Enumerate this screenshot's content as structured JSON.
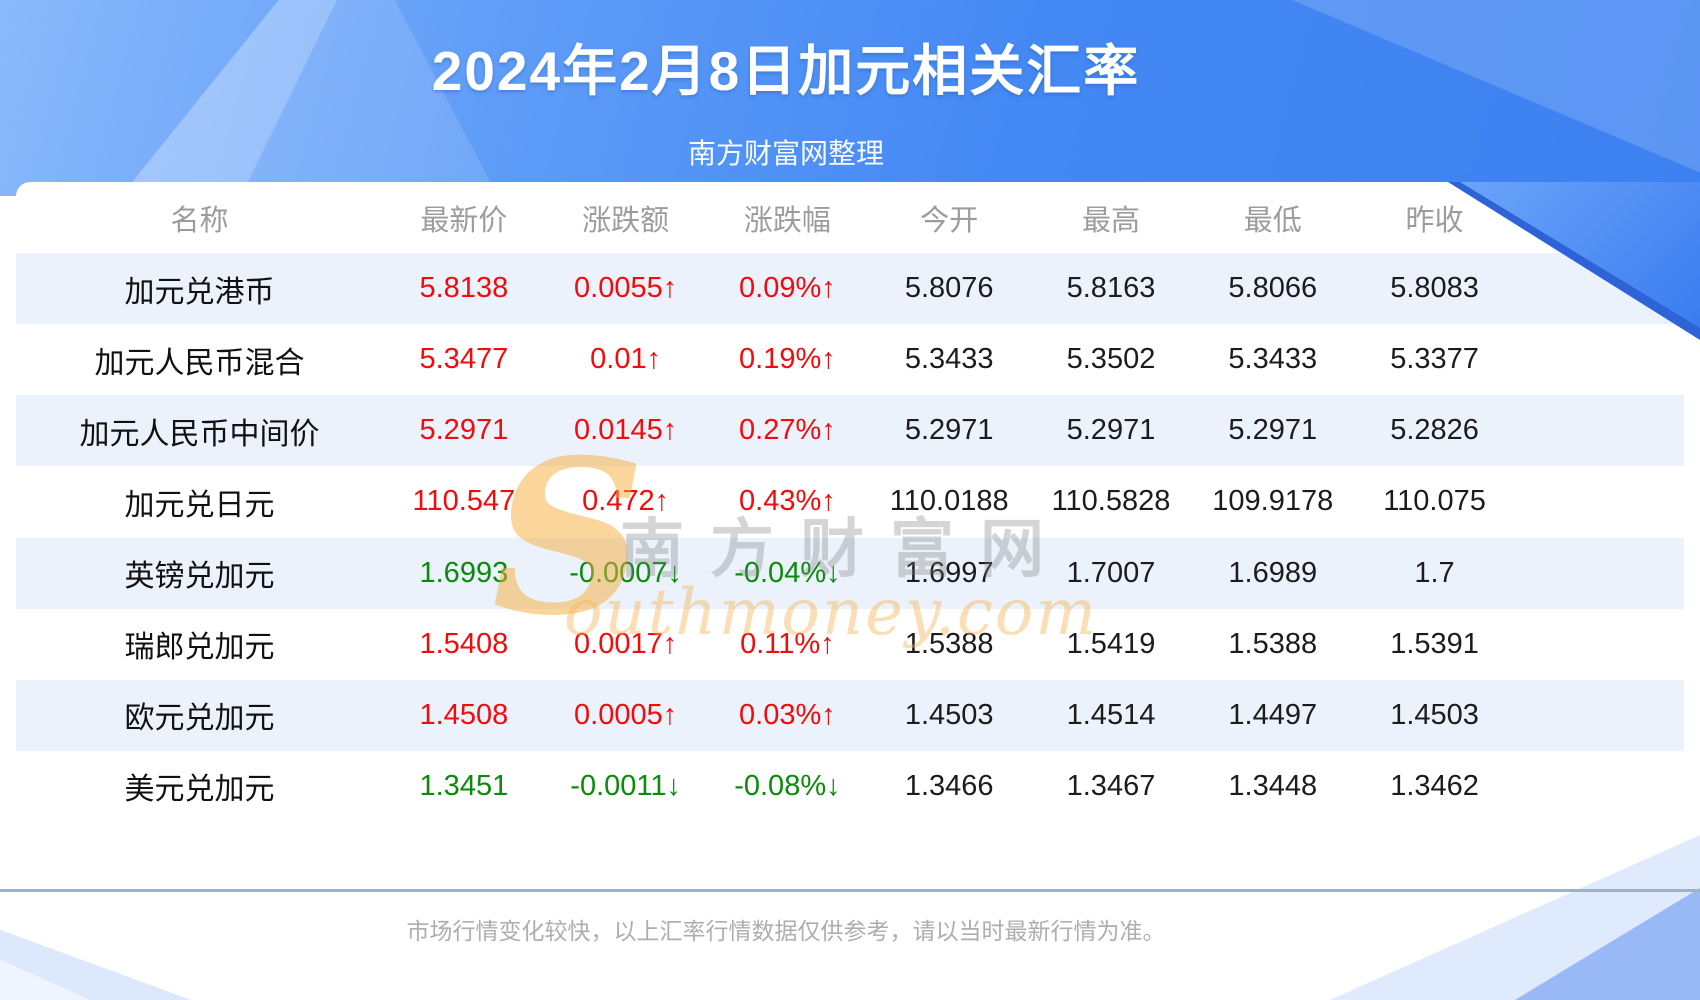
{
  "page": {
    "title": "2024年2月8日加元相关汇率",
    "subtitle": "南方财富网整理",
    "footer_note": "市场行情变化较快，以上汇率行情数据仅供参考，请以当时最新行情为准。"
  },
  "watermark": {
    "initial": "S",
    "cn": "南方财富网",
    "en": "outhmoney.com"
  },
  "colors": {
    "up": "#f30b0b",
    "down": "#0a8c0a",
    "banner_blue": "#4488f4",
    "row_stripe": "#ebf2fb",
    "header_text": "#9c9c9c",
    "divider": "#9db4c7"
  },
  "chart_data": {
    "type": "table",
    "title": "2024年2月8日加元相关汇率",
    "columns": [
      "名称",
      "最新价",
      "涨跌额",
      "涨跌幅",
      "今开",
      "最高",
      "最低",
      "昨收"
    ],
    "rows": [
      [
        "加元兑港币",
        "5.8138",
        "0.0055↑",
        "0.09%↑",
        "5.8076",
        "5.8163",
        "5.8066",
        "5.8083"
      ],
      [
        "加元人民币混合",
        "5.3477",
        "0.01↑",
        "0.19%↑",
        "5.3433",
        "5.3502",
        "5.3433",
        "5.3377"
      ],
      [
        "加元人民币中间价",
        "5.2971",
        "0.0145↑",
        "0.27%↑",
        "5.2971",
        "5.2971",
        "5.2971",
        "5.2826"
      ],
      [
        "加元兑日元",
        "110.547",
        "0.472↑",
        "0.43%↑",
        "110.0188",
        "110.5828",
        "109.9178",
        "110.075"
      ],
      [
        "英镑兑加元",
        "1.6993",
        "-0.0007↓",
        "-0.04%↓",
        "1.6997",
        "1.7007",
        "1.6989",
        "1.7"
      ],
      [
        "瑞郎兑加元",
        "1.5408",
        "0.0017↑",
        "0.11%↑",
        "1.5388",
        "1.5419",
        "1.5388",
        "1.5391"
      ],
      [
        "欧元兑加元",
        "1.4508",
        "0.0005↑",
        "0.03%↑",
        "1.4503",
        "1.4514",
        "1.4497",
        "1.4503"
      ],
      [
        "美元兑加元",
        "1.3451",
        "-0.0011↓",
        "-0.08%↓",
        "1.3466",
        "1.3467",
        "1.3448",
        "1.3462"
      ]
    ],
    "directions": [
      "up",
      "up",
      "up",
      "up",
      "down",
      "up",
      "up",
      "down"
    ]
  }
}
